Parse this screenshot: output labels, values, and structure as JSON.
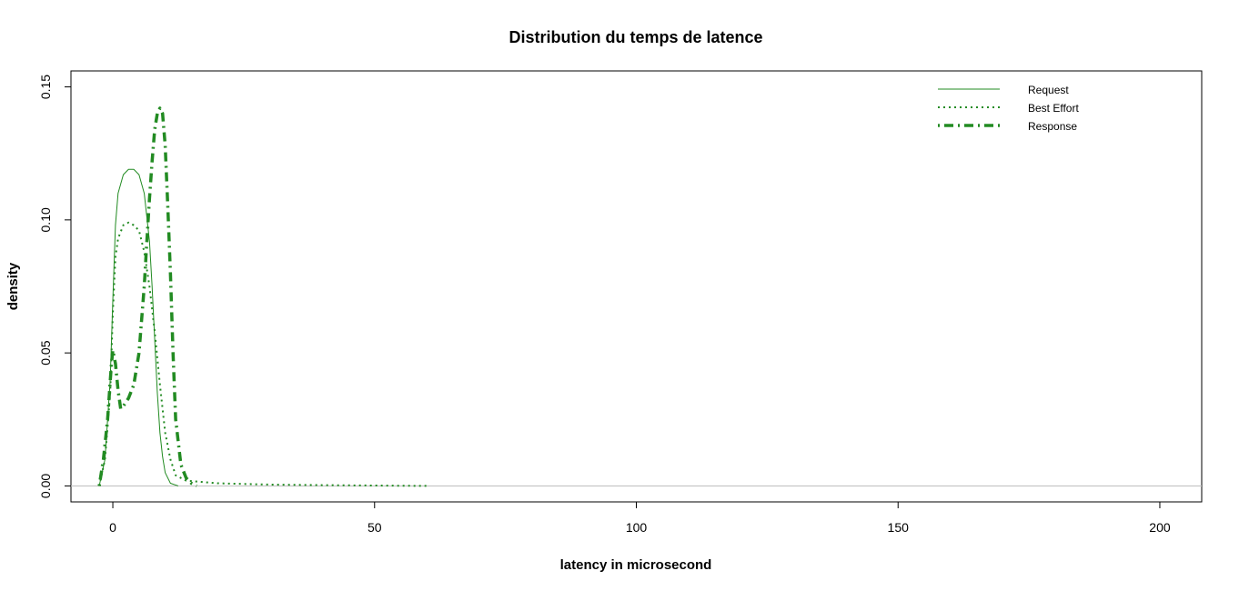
{
  "chart_data": {
    "type": "line",
    "title": "Distribution du temps de latence",
    "xlabel": "latency in microsecond",
    "ylabel": "density",
    "xlim": [
      -8,
      208
    ],
    "ylim": [
      -0.006,
      0.156
    ],
    "x_ticks": [
      0,
      50,
      100,
      150,
      200
    ],
    "y_ticks": [
      0.0,
      0.05,
      0.1,
      0.15
    ],
    "x_tick_labels": [
      "0",
      "50",
      "100",
      "150",
      "200"
    ],
    "y_tick_labels": [
      "0.00",
      "0.05",
      "0.10",
      "0.15"
    ],
    "baseline": 0,
    "baseline_color": "#bebebe",
    "line_color": "#228B22",
    "grid": false,
    "legend_position": "top-right",
    "series": [
      {
        "name": "Request",
        "style": "solid",
        "points": [
          [
            -2.6,
            0.0
          ],
          [
            -1.5,
            0.01
          ],
          [
            -0.5,
            0.04
          ],
          [
            0.0,
            0.07
          ],
          [
            0.5,
            0.098
          ],
          [
            1.0,
            0.11
          ],
          [
            2.0,
            0.117
          ],
          [
            3.0,
            0.119
          ],
          [
            4.0,
            0.119
          ],
          [
            5.0,
            0.117
          ],
          [
            6.0,
            0.11
          ],
          [
            7.0,
            0.092
          ],
          [
            7.5,
            0.075
          ],
          [
            8.0,
            0.055
          ],
          [
            8.5,
            0.035
          ],
          [
            9.0,
            0.02
          ],
          [
            9.5,
            0.011
          ],
          [
            10.0,
            0.005
          ],
          [
            11.0,
            0.001
          ],
          [
            12.5,
            0.0
          ]
        ]
      },
      {
        "name": "Best Effort",
        "style": "dotted",
        "points": [
          [
            -2.6,
            0.0
          ],
          [
            -1.5,
            0.01
          ],
          [
            -0.5,
            0.035
          ],
          [
            0.0,
            0.065
          ],
          [
            0.5,
            0.086
          ],
          [
            1.0,
            0.093
          ],
          [
            2.0,
            0.098
          ],
          [
            3.0,
            0.099
          ],
          [
            4.0,
            0.098
          ],
          [
            5.0,
            0.096
          ],
          [
            6.0,
            0.088
          ],
          [
            7.0,
            0.075
          ],
          [
            8.0,
            0.058
          ],
          [
            9.0,
            0.038
          ],
          [
            10.0,
            0.02
          ],
          [
            11.0,
            0.01
          ],
          [
            12.0,
            0.004
          ],
          [
            14.0,
            0.002
          ],
          [
            20.0,
            0.001
          ],
          [
            30.0,
            0.0005
          ],
          [
            40.0,
            0.0003
          ],
          [
            60.0,
            0.0
          ]
        ]
      },
      {
        "name": "Response",
        "style": "dashdot",
        "points": [
          [
            -2.6,
            0.0
          ],
          [
            -1.8,
            0.01
          ],
          [
            -1.0,
            0.025
          ],
          [
            -0.3,
            0.045
          ],
          [
            0.0,
            0.051
          ],
          [
            0.5,
            0.046
          ],
          [
            1.0,
            0.036
          ],
          [
            1.5,
            0.029
          ],
          [
            2.0,
            0.03
          ],
          [
            3.0,
            0.033
          ],
          [
            4.0,
            0.038
          ],
          [
            5.0,
            0.05
          ],
          [
            6.0,
            0.075
          ],
          [
            6.5,
            0.092
          ],
          [
            7.0,
            0.108
          ],
          [
            7.5,
            0.122
          ],
          [
            8.0,
            0.134
          ],
          [
            8.5,
            0.14
          ],
          [
            9.0,
            0.142
          ],
          [
            9.5,
            0.14
          ],
          [
            10.0,
            0.128
          ],
          [
            10.5,
            0.105
          ],
          [
            11.0,
            0.08
          ],
          [
            11.5,
            0.05
          ],
          [
            12.0,
            0.025
          ],
          [
            13.0,
            0.008
          ],
          [
            14.0,
            0.003
          ],
          [
            15.0,
            0.001
          ],
          [
            16.0,
            0.0
          ]
        ]
      }
    ]
  }
}
